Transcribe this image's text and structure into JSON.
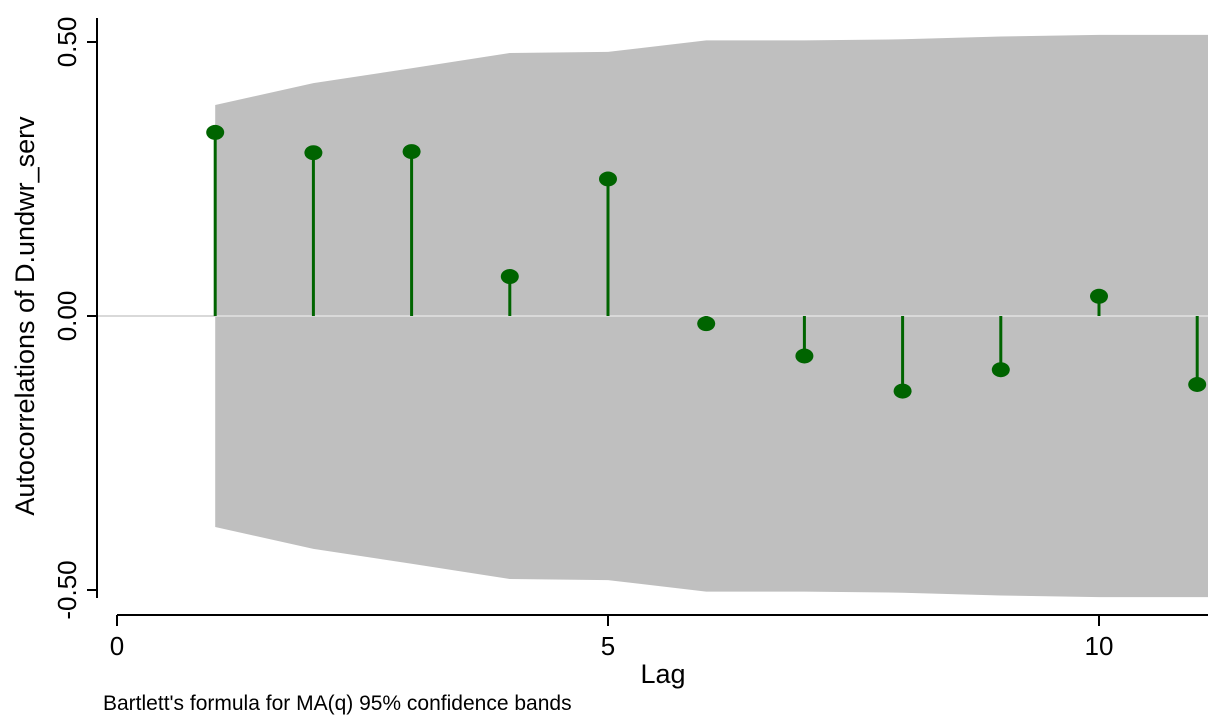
{
  "chart_data": {
    "type": "stem",
    "ylabel": "Autocorrelations of D.undwr_serv",
    "xlabel": "Lag",
    "note": "Bartlett's formula for MA(q) 95% confidence bands",
    "xlim": [
      0,
      11
    ],
    "ylim": [
      -0.5,
      0.5
    ],
    "xticks": [
      0,
      5,
      10
    ],
    "xtick_labels": [
      "0",
      "5",
      "10"
    ],
    "yticks": [
      -0.5,
      0.0,
      0.5
    ],
    "ytick_labels": [
      "-0.50",
      "0.00",
      "0.50"
    ],
    "lags": [
      1,
      2,
      3,
      4,
      5,
      6,
      7,
      8,
      9,
      10,
      11
    ],
    "acf": [
      0.335,
      0.298,
      0.3,
      0.072,
      0.25,
      -0.014,
      -0.073,
      -0.137,
      -0.098,
      0.036,
      -0.125
    ],
    "conf_band_upper": [
      0.385,
      0.425,
      0.452,
      0.48,
      0.482,
      0.503,
      0.503,
      0.505,
      0.51,
      0.513,
      0.513
    ],
    "conf_band_lower": [
      -0.385,
      -0.425,
      -0.452,
      -0.48,
      -0.482,
      -0.503,
      -0.503,
      -0.505,
      -0.51,
      -0.513,
      -0.513
    ],
    "colors": {
      "band": "#bfbfbf",
      "stem": "#006400",
      "zero_line": "#d9d9d9",
      "axis": "#000000"
    },
    "grid": false
  }
}
